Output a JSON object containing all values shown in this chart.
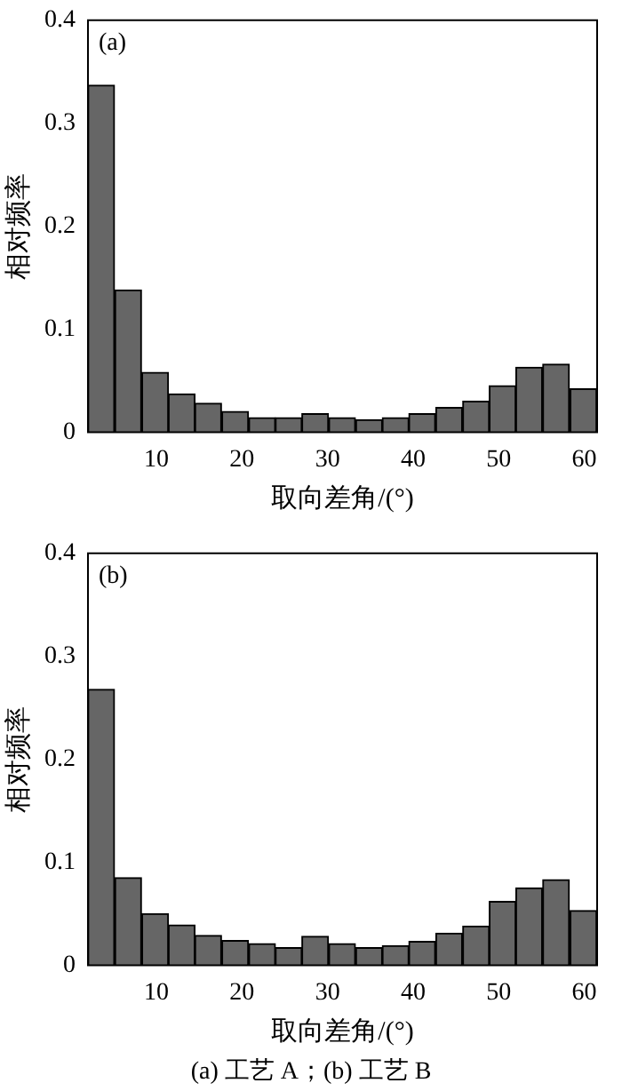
{
  "chart_data": [
    {
      "type": "histogram",
      "annotations": [
        "(a)"
      ],
      "xlabel": "取向差角/(°)",
      "ylabel": "相对频率",
      "color": "#666666",
      "bins": [
        2,
        5.1,
        8.3,
        11.4,
        14.5,
        17.6,
        20.8,
        23.9,
        27,
        30.1,
        33.3,
        36.4,
        39.5,
        42.6,
        45.8,
        48.9,
        52,
        55.1,
        58.3,
        61.5
      ],
      "values": [
        0.337,
        0.138,
        0.058,
        0.037,
        0.028,
        0.02,
        0.014,
        0.014,
        0.018,
        0.014,
        0.012,
        0.014,
        0.018,
        0.024,
        0.03,
        0.045,
        0.063,
        0.066,
        0.042
      ],
      "xlim": [
        2,
        61.5
      ],
      "xticks": [
        10,
        20,
        30,
        40,
        50,
        60
      ],
      "ylim": [
        0,
        0.4
      ],
      "yticks": [
        0,
        0.1,
        0.2,
        0.3,
        0.4
      ],
      "grid": false
    },
    {
      "type": "histogram",
      "annotations": [
        "(b)",
        "(a) 工艺 A；(b) 工艺 B"
      ],
      "xlabel": "取向差角/(°)",
      "ylabel": "相对频率",
      "color": "#666666",
      "bins": [
        2,
        5.1,
        8.3,
        11.4,
        14.5,
        17.6,
        20.8,
        23.9,
        27,
        30.1,
        33.3,
        36.4,
        39.5,
        42.6,
        45.8,
        48.9,
        52,
        55.1,
        58.3,
        61.5
      ],
      "values": [
        0.268,
        0.085,
        0.05,
        0.039,
        0.029,
        0.024,
        0.021,
        0.017,
        0.028,
        0.021,
        0.017,
        0.019,
        0.023,
        0.031,
        0.038,
        0.062,
        0.075,
        0.083,
        0.053
      ],
      "xlim": [
        2,
        61.5
      ],
      "xticks": [
        10,
        20,
        30,
        40,
        50,
        60
      ],
      "ylim": [
        0,
        0.4
      ],
      "yticks": [
        0,
        0.1,
        0.2,
        0.3,
        0.4
      ],
      "grid": false
    }
  ]
}
